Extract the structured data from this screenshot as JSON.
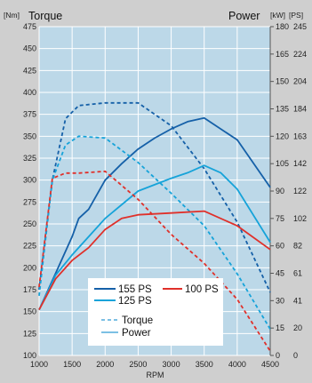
{
  "chart_data": {
    "type": "line",
    "title_left": "Torque",
    "title_right": "Power",
    "left_unit": "[Nm]",
    "right_unit_kw": "[kW]",
    "right_unit_ps": "[PS]",
    "xlabel": "RPM",
    "xlim": [
      1000,
      4500
    ],
    "x_ticks": [
      1000,
      1500,
      2000,
      2500,
      3000,
      3500,
      4000,
      4500
    ],
    "torque_lim": [
      100,
      475
    ],
    "torque_ticks": [
      100,
      125,
      150,
      175,
      200,
      225,
      250,
      275,
      300,
      325,
      350,
      375,
      400,
      425,
      450,
      475
    ],
    "power_kw_lim": [
      0,
      180
    ],
    "power_kw_ticks": [
      0,
      15,
      30,
      45,
      60,
      75,
      90,
      105,
      120,
      135,
      150,
      165,
      180
    ],
    "power_ps_ticks": [
      "0",
      "20",
      "41",
      "61",
      "82",
      "102",
      "122",
      "142",
      "163",
      "184",
      "204",
      "224",
      "245"
    ],
    "grid": true,
    "legend_position": "bottom-center",
    "legend": {
      "series_labels": [
        "155 PS",
        "125 PS",
        "100 PS"
      ],
      "style_labels": [
        "Torque",
        "Power"
      ]
    },
    "series": [
      {
        "name": "155 PS",
        "color": "#1560a8",
        "power_kw": [
          [
            1000,
            25
          ],
          [
            1250,
            45
          ],
          [
            1500,
            65
          ],
          [
            1600,
            75
          ],
          [
            1750,
            80
          ],
          [
            2000,
            96
          ],
          [
            2250,
            105
          ],
          [
            2500,
            113
          ],
          [
            2750,
            119
          ],
          [
            3000,
            124
          ],
          [
            3250,
            128
          ],
          [
            3500,
            130
          ],
          [
            4000,
            118
          ],
          [
            4500,
            92
          ]
        ],
        "torque_nm": [
          [
            1000,
            175
          ],
          [
            1200,
            300
          ],
          [
            1400,
            370
          ],
          [
            1600,
            385
          ],
          [
            2000,
            388
          ],
          [
            2500,
            388
          ],
          [
            3000,
            362
          ],
          [
            3500,
            313
          ],
          [
            4000,
            252
          ],
          [
            4500,
            172
          ]
        ]
      },
      {
        "name": "125 PS",
        "color": "#16a3d9",
        "power_kw": [
          [
            1000,
            25
          ],
          [
            1250,
            44
          ],
          [
            1500,
            55
          ],
          [
            1750,
            65
          ],
          [
            2000,
            75
          ],
          [
            2500,
            90
          ],
          [
            3000,
            97
          ],
          [
            3250,
            100
          ],
          [
            3500,
            104
          ],
          [
            3750,
            100
          ],
          [
            4000,
            91
          ],
          [
            4500,
            62
          ]
        ],
        "torque_nm": [
          [
            1000,
            168
          ],
          [
            1200,
            300
          ],
          [
            1400,
            340
          ],
          [
            1600,
            350
          ],
          [
            2000,
            348
          ],
          [
            2500,
            320
          ],
          [
            3000,
            285
          ],
          [
            3500,
            248
          ],
          [
            4000,
            193
          ],
          [
            4500,
            130
          ]
        ]
      },
      {
        "name": "100 PS",
        "color": "#e0302a",
        "power_kw": [
          [
            1000,
            25
          ],
          [
            1250,
            42
          ],
          [
            1500,
            52
          ],
          [
            1750,
            59
          ],
          [
            2000,
            69
          ],
          [
            2250,
            75
          ],
          [
            2500,
            77
          ],
          [
            3000,
            78
          ],
          [
            3500,
            79
          ],
          [
            4000,
            71
          ],
          [
            4500,
            58
          ]
        ],
        "torque_nm": [
          [
            1000,
            178
          ],
          [
            1200,
            302
          ],
          [
            1400,
            308
          ],
          [
            1600,
            308
          ],
          [
            2000,
            310
          ],
          [
            2500,
            278
          ],
          [
            3000,
            238
          ],
          [
            3500,
            205
          ],
          [
            4000,
            164
          ],
          [
            4500,
            105
          ]
        ]
      }
    ]
  }
}
